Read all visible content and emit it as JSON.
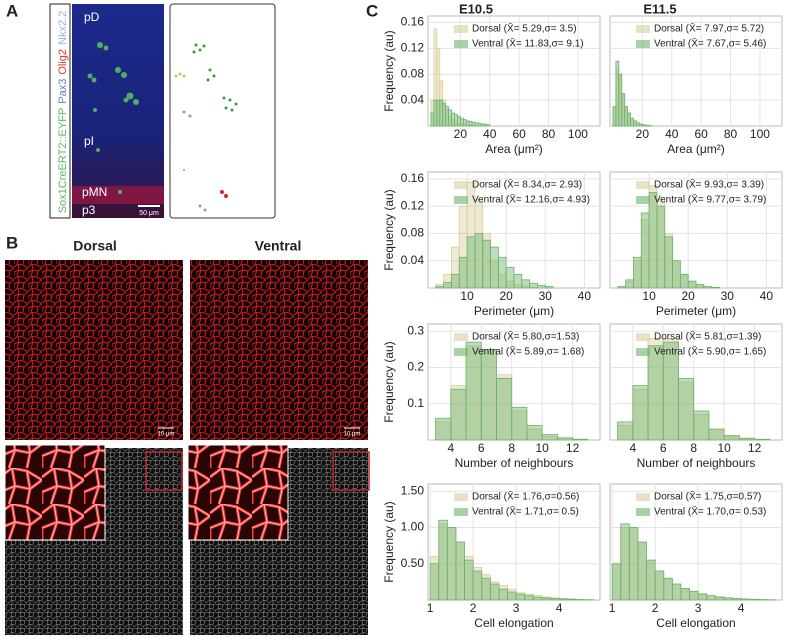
{
  "panel_labels": [
    "A",
    "B",
    "C"
  ],
  "panel_a": {
    "channels": [
      "Sox1CreERT2::EYFP",
      "Pax3",
      "Olig2",
      "Nkx2.2"
    ],
    "channel_colors": [
      "#5cb85c",
      "#5b7fc7",
      "#d9352f",
      "#8fb6e0"
    ],
    "regions": [
      "pD",
      "pI",
      "pMN",
      "p3"
    ],
    "scale_bar": "50 μm"
  },
  "panel_b": {
    "titles": [
      "Dorsal",
      "Ventral"
    ],
    "scale_bars": [
      "10 μm",
      "10 μm"
    ]
  },
  "column_titles": [
    "E10.5",
    "E11.5"
  ],
  "chart_data": [
    {
      "type": "histogram",
      "xlabel": "Area (μm²)",
      "ylabel": "Frequency (au)",
      "bins": [
        0,
        2,
        4,
        6,
        8,
        10,
        12,
        14,
        16,
        18,
        20,
        22,
        24,
        26,
        28,
        30,
        32,
        34,
        36,
        38,
        40
      ],
      "series": [
        {
          "name": "Dorsal (X̄= 5.29,σ= 3.5)",
          "color": "#d8cf9c",
          "values": [
            0.04,
            0.15,
            0.12,
            0.07,
            0.04,
            0.025,
            0.015,
            0.01,
            0.006,
            0.004,
            0.003,
            0.002,
            0.001,
            0.001,
            0,
            0,
            0,
            0,
            0,
            0
          ]
        },
        {
          "name": "Ventral (X̄= 11.83,σ= 9.1)",
          "color": "#6cb46c",
          "values": [
            0.02,
            0.04,
            0.04,
            0.04,
            0.035,
            0.03,
            0.025,
            0.02,
            0.018,
            0.015,
            0.012,
            0.01,
            0.008,
            0.007,
            0.006,
            0.005,
            0.004,
            0.003,
            0.003,
            0.002
          ]
        }
      ],
      "xlim": [
        -2,
        115
      ],
      "xticks": [
        20,
        40,
        60,
        80,
        100
      ],
      "ylim": [
        0,
        0.17
      ],
      "yticks": [
        0.04,
        0.08,
        0.12,
        0.16
      ],
      "grid": true,
      "show_ytick_labels": true
    },
    {
      "type": "histogram",
      "xlabel": "Area (μm²)",
      "bins": [
        0,
        2,
        4,
        6,
        8,
        10,
        12,
        14,
        16,
        18,
        20,
        22,
        24,
        26,
        28,
        30,
        32,
        34,
        36,
        38,
        40
      ],
      "series": [
        {
          "name": "Dorsal (X̄= 7.97,σ= 5.72)",
          "color": "#d8cf9c",
          "values": [
            0.03,
            0.09,
            0.08,
            0.05,
            0.03,
            0.02,
            0.012,
            0.008,
            0.005,
            0.003,
            0.002,
            0.001,
            0.001,
            0,
            0,
            0,
            0,
            0,
            0,
            0
          ]
        },
        {
          "name": "Ventral (X̄= 7.67,σ= 5.46)",
          "color": "#6cb46c",
          "values": [
            0.03,
            0.1,
            0.08,
            0.05,
            0.03,
            0.02,
            0.012,
            0.008,
            0.005,
            0.003,
            0.002,
            0.001,
            0.001,
            0,
            0,
            0,
            0,
            0,
            0,
            0
          ]
        }
      ],
      "xlim": [
        -2,
        115
      ],
      "xticks": [
        20,
        40,
        60,
        80,
        100
      ],
      "ylim": [
        0,
        0.17
      ],
      "yticks": [
        0.04,
        0.08,
        0.12,
        0.16
      ],
      "grid": true,
      "show_ytick_labels": false
    },
    {
      "type": "histogram",
      "xlabel": "Perimeter (μm)",
      "ylabel": "Frequency (au)",
      "bins": [
        2,
        4,
        6,
        8,
        10,
        12,
        14,
        16,
        18,
        20,
        22,
        24,
        26,
        28,
        30,
        32
      ],
      "series": [
        {
          "name": "Dorsal (X̄= 8.34,σ= 2.93)",
          "color": "#d8cf9c",
          "values": [
            0.005,
            0.02,
            0.06,
            0.12,
            0.155,
            0.13,
            0.08,
            0.04,
            0.02,
            0.01,
            0.005,
            0.003,
            0.001,
            0,
            0
          ]
        },
        {
          "name": "Ventral (X̄= 12.16,σ= 4.93)",
          "color": "#6cb46c",
          "values": [
            0.002,
            0.008,
            0.02,
            0.045,
            0.075,
            0.08,
            0.07,
            0.06,
            0.045,
            0.03,
            0.02,
            0.012,
            0.007,
            0.004,
            0.002
          ]
        }
      ],
      "xlim": [
        0,
        44
      ],
      "xticks": [
        10,
        20,
        30,
        40
      ],
      "ylim": [
        0,
        0.17
      ],
      "yticks": [
        0.04,
        0.08,
        0.12,
        0.16
      ],
      "grid": true,
      "show_ytick_labels": true
    },
    {
      "type": "histogram",
      "xlabel": "Perimeter (μm)",
      "bins": [
        2,
        4,
        6,
        8,
        10,
        12,
        14,
        16,
        18,
        20,
        22,
        24,
        26,
        28,
        30,
        32
      ],
      "series": [
        {
          "name": "Dorsal (X̄= 9.93,σ= 3.39)",
          "color": "#d8cf9c",
          "values": [
            0.002,
            0.01,
            0.04,
            0.1,
            0.15,
            0.13,
            0.08,
            0.04,
            0.02,
            0.01,
            0.005,
            0.002,
            0.001,
            0,
            0
          ]
        },
        {
          "name": "Ventral (X̄= 9.77,σ= 3.79)",
          "color": "#6cb46c",
          "values": [
            0.002,
            0.012,
            0.045,
            0.11,
            0.14,
            0.12,
            0.075,
            0.04,
            0.02,
            0.01,
            0.005,
            0.002,
            0.001,
            0,
            0
          ]
        }
      ],
      "xlim": [
        0,
        44
      ],
      "xticks": [
        10,
        20,
        30,
        40
      ],
      "ylim": [
        0,
        0.17
      ],
      "yticks": [
        0.04,
        0.08,
        0.12,
        0.16
      ],
      "grid": true,
      "show_ytick_labels": false
    },
    {
      "type": "histogram",
      "xlabel": "Number of neighbours",
      "ylabel": "Frequency (au)",
      "bins": [
        3,
        4,
        5,
        6,
        7,
        8,
        9,
        10,
        11,
        12,
        13
      ],
      "series": [
        {
          "name": "Dorsal (X̄= 5.80,σ=1.53)",
          "color": "#d8cf9c",
          "values": [
            0.05,
            0.15,
            0.26,
            0.25,
            0.18,
            0.08,
            0.03,
            0.01,
            0.005,
            0.002
          ]
        },
        {
          "name": "Ventral (X̄= 5.89,σ= 1.68)",
          "color": "#6cb46c",
          "values": [
            0.06,
            0.14,
            0.27,
            0.25,
            0.17,
            0.09,
            0.04,
            0.015,
            0.006,
            0.002
          ]
        }
      ],
      "xlim": [
        2.5,
        13.8
      ],
      "xticks": [
        4,
        6,
        8,
        10,
        12
      ],
      "ylim": [
        0,
        0.32
      ],
      "yticks": [
        0.1,
        0.2,
        0.3
      ],
      "grid": true,
      "show_ytick_labels": true
    },
    {
      "type": "histogram",
      "xlabel": "Number of neighbours",
      "bins": [
        3,
        4,
        5,
        6,
        7,
        8,
        9,
        10,
        11,
        12,
        13
      ],
      "series": [
        {
          "name": "Dorsal (X̄= 5.81,σ=1.39)",
          "color": "#d8cf9c",
          "values": [
            0.04,
            0.14,
            0.28,
            0.28,
            0.16,
            0.07,
            0.03,
            0.01,
            0.004,
            0.001
          ]
        },
        {
          "name": "Ventral (X̄= 5.90,σ= 1.65)",
          "color": "#6cb46c",
          "values": [
            0.05,
            0.15,
            0.26,
            0.27,
            0.17,
            0.08,
            0.03,
            0.012,
            0.005,
            0.002
          ]
        }
      ],
      "xlim": [
        2.5,
        13.8
      ],
      "xticks": [
        4,
        6,
        8,
        10,
        12
      ],
      "ylim": [
        0,
        0.32
      ],
      "yticks": [
        0.1,
        0.2,
        0.3
      ],
      "grid": true,
      "show_ytick_labels": false
    },
    {
      "type": "histogram",
      "xlabel": "Cell elongation",
      "ylabel": "Frequency (au)",
      "bins": [
        1,
        1.2,
        1.4,
        1.6,
        1.8,
        2,
        2.2,
        2.4,
        2.6,
        2.8,
        3,
        3.2,
        3.4,
        3.6,
        3.8,
        4,
        4.2,
        4.4,
        4.6,
        4.8
      ],
      "series": [
        {
          "name": "Dorsal (X̄= 1.76,σ=0.56)",
          "color": "#d8cf9c",
          "values": [
            0.6,
            1.05,
            1.0,
            0.8,
            0.6,
            0.45,
            0.35,
            0.25,
            0.2,
            0.15,
            0.1,
            0.08,
            0.06,
            0.04,
            0.03,
            0.02,
            0.015,
            0.01,
            0.005
          ]
        },
        {
          "name": "Ventral (X̄= 1.71,σ= 0.5)",
          "color": "#6cb46c",
          "values": [
            0.5,
            1.1,
            1.0,
            0.8,
            0.55,
            0.4,
            0.3,
            0.22,
            0.15,
            0.11,
            0.08,
            0.06,
            0.04,
            0.03,
            0.02,
            0.015,
            0.01,
            0.005,
            0.003
          ]
        }
      ],
      "xlim": [
        0.95,
        4.95
      ],
      "xticks": [
        1,
        2,
        3,
        4
      ],
      "ylim": [
        0,
        1.6
      ],
      "yticks": [
        {
          "value": 0.5,
          "label": "0.50"
        },
        {
          "value": 1,
          "label": "1.00"
        },
        {
          "value": 1.5,
          "label": "1.50"
        }
      ],
      "grid": true,
      "show_ytick_labels": true
    },
    {
      "type": "histogram",
      "xlabel": "Cell elongation",
      "bins": [
        1,
        1.2,
        1.4,
        1.6,
        1.8,
        2,
        2.2,
        2.4,
        2.6,
        2.8,
        3,
        3.2,
        3.4,
        3.6,
        3.8,
        4,
        4.2,
        4.4,
        4.6,
        4.8
      ],
      "series": [
        {
          "name": "Dorsal (X̄= 1.75,σ=0.57)",
          "color": "#d8cf9c",
          "values": [
            0.5,
            1.0,
            1.0,
            0.8,
            0.55,
            0.4,
            0.3,
            0.22,
            0.16,
            0.12,
            0.09,
            0.06,
            0.045,
            0.03,
            0.02,
            0.015,
            0.01,
            0.006,
            0.003
          ]
        },
        {
          "name": "Ventral (X̄= 1.70,σ= 0.53)",
          "color": "#6cb46c",
          "values": [
            0.5,
            1.05,
            1.0,
            0.8,
            0.55,
            0.4,
            0.3,
            0.22,
            0.16,
            0.12,
            0.08,
            0.06,
            0.04,
            0.03,
            0.02,
            0.015,
            0.01,
            0.006,
            0.003
          ]
        }
      ],
      "xlim": [
        0.95,
        4.95
      ],
      "xticks": [
        1,
        2,
        3,
        4
      ],
      "ylim": [
        0,
        1.6
      ],
      "yticks": [
        {
          "value": 0.5,
          "label": "0.50"
        },
        {
          "value": 1,
          "label": "1.00"
        },
        {
          "value": 1.5,
          "label": "1.50"
        }
      ],
      "grid": true,
      "show_ytick_labels": false
    }
  ]
}
